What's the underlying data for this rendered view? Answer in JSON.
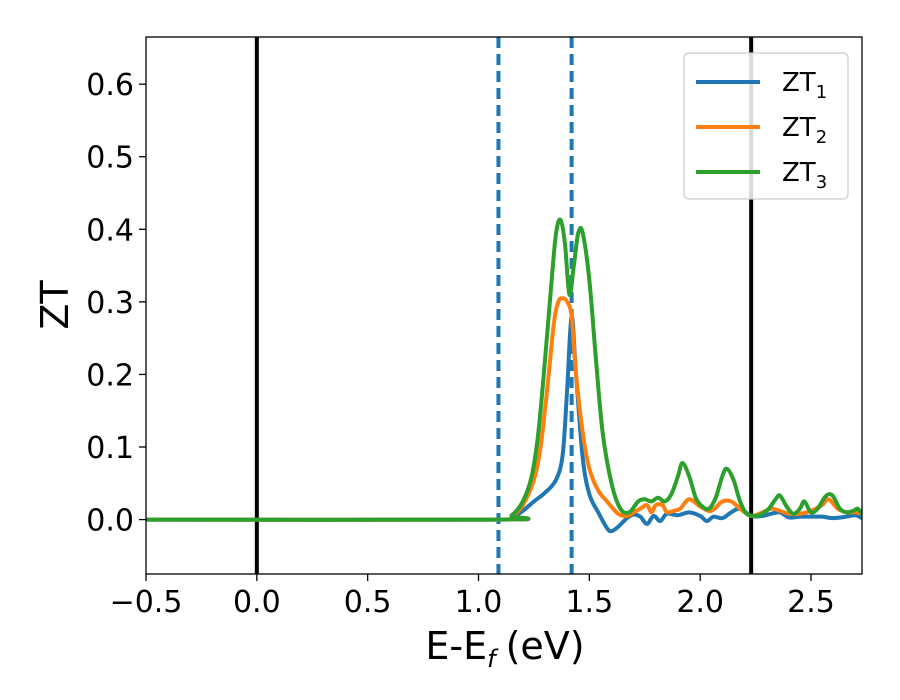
{
  "chart_data": {
    "type": "line",
    "xlabel": "E-E",
    "xlabel_subscript": "f",
    "xlabel_unit": "(eV)",
    "ylabel": "ZT",
    "xlim": [
      -0.5,
      2.73
    ],
    "ylim": [
      -0.075,
      0.665
    ],
    "x_ticks": [
      -0.5,
      0.0,
      0.5,
      1.0,
      1.5,
      2.0,
      2.5
    ],
    "x_tick_labels": [
      "−0.5",
      "0.0",
      "0.5",
      "1.0",
      "1.5",
      "2.0",
      "2.5"
    ],
    "y_ticks": [
      0.0,
      0.1,
      0.2,
      0.3,
      0.4,
      0.5,
      0.6
    ],
    "y_tick_labels": [
      "0.0",
      "0.1",
      "0.2",
      "0.3",
      "0.4",
      "0.5",
      "0.6"
    ],
    "grid": false,
    "legend_position": "top-right",
    "vertical_lines": [
      {
        "x": 0.0,
        "style": "solid",
        "color": "#000000"
      },
      {
        "x": 2.23,
        "style": "solid",
        "color": "#000000"
      },
      {
        "x": 1.09,
        "style": "dashed",
        "color": "#1f77b4"
      },
      {
        "x": 1.42,
        "style": "dashed",
        "color": "#1f77b4"
      }
    ],
    "series": [
      {
        "name": "ZT",
        "subscript": "1",
        "color": "#1f77b4",
        "points": [
          [
            -0.5,
            0
          ],
          [
            1.09,
            0
          ],
          [
            1.15,
            0.003
          ],
          [
            1.2,
            0.012
          ],
          [
            1.25,
            0.025
          ],
          [
            1.3,
            0.037
          ],
          [
            1.35,
            0.055
          ],
          [
            1.38,
            0.09
          ],
          [
            1.4,
            0.18
          ],
          [
            1.42,
            0.28
          ],
          [
            1.44,
            0.2
          ],
          [
            1.47,
            0.085
          ],
          [
            1.5,
            0.035
          ],
          [
            1.54,
            0.01
          ],
          [
            1.58,
            -0.012
          ],
          [
            1.6,
            -0.016
          ],
          [
            1.63,
            -0.01
          ],
          [
            1.67,
            0.002
          ],
          [
            1.7,
            0.007
          ],
          [
            1.73,
            0.004
          ],
          [
            1.76,
            -0.006
          ],
          [
            1.79,
            0.005
          ],
          [
            1.82,
            -0.002
          ],
          [
            1.85,
            0.008
          ],
          [
            1.9,
            0.006
          ],
          [
            1.95,
            0.01
          ],
          [
            2.0,
            0.005
          ],
          [
            2.03,
            -0.002
          ],
          [
            2.06,
            0.004
          ],
          [
            2.1,
            0.002
          ],
          [
            2.14,
            0.01
          ],
          [
            2.18,
            0.015
          ],
          [
            2.23,
            0.005
          ],
          [
            2.28,
            0.005
          ],
          [
            2.32,
            0.008
          ],
          [
            2.36,
            0.01
          ],
          [
            2.4,
            0.003
          ],
          [
            2.45,
            0.004
          ],
          [
            2.5,
            0.004
          ],
          [
            2.55,
            0.004
          ],
          [
            2.6,
            0.002
          ],
          [
            2.66,
            0.004
          ],
          [
            2.7,
            0.006
          ],
          [
            2.73,
            0.002
          ]
        ]
      },
      {
        "name": "ZT",
        "subscript": "2",
        "color": "#ff7f0e",
        "points": [
          [
            -0.5,
            0
          ],
          [
            1.09,
            0
          ],
          [
            1.15,
            0.005
          ],
          [
            1.2,
            0.02
          ],
          [
            1.25,
            0.055
          ],
          [
            1.28,
            0.1
          ],
          [
            1.31,
            0.18
          ],
          [
            1.34,
            0.27
          ],
          [
            1.36,
            0.3
          ],
          [
            1.38,
            0.305
          ],
          [
            1.4,
            0.3
          ],
          [
            1.42,
            0.28
          ],
          [
            1.44,
            0.2
          ],
          [
            1.47,
            0.12
          ],
          [
            1.5,
            0.07
          ],
          [
            1.54,
            0.04
          ],
          [
            1.58,
            0.025
          ],
          [
            1.63,
            0.008
          ],
          [
            1.67,
            0.005
          ],
          [
            1.7,
            0.01
          ],
          [
            1.73,
            0.015
          ],
          [
            1.76,
            0.02
          ],
          [
            1.78,
            0.01
          ],
          [
            1.8,
            0.02
          ],
          [
            1.83,
            0.02
          ],
          [
            1.85,
            0.01
          ],
          [
            1.88,
            0.012
          ],
          [
            1.91,
            0.015
          ],
          [
            1.95,
            0.028
          ],
          [
            2.0,
            0.018
          ],
          [
            2.05,
            0.012
          ],
          [
            2.1,
            0.025
          ],
          [
            2.14,
            0.025
          ],
          [
            2.18,
            0.015
          ],
          [
            2.23,
            0.005
          ],
          [
            2.28,
            0.01
          ],
          [
            2.32,
            0.015
          ],
          [
            2.36,
            0.012
          ],
          [
            2.4,
            0.008
          ],
          [
            2.45,
            0.008
          ],
          [
            2.5,
            0.012
          ],
          [
            2.55,
            0.02
          ],
          [
            2.58,
            0.028
          ],
          [
            2.62,
            0.015
          ],
          [
            2.66,
            0.01
          ],
          [
            2.7,
            0.01
          ],
          [
            2.73,
            0.008
          ]
        ]
      },
      {
        "name": "ZT",
        "subscript": "3",
        "color": "#2ca02c",
        "points": [
          [
            -0.5,
            0
          ],
          [
            1.09,
            0
          ],
          [
            1.15,
            0.006
          ],
          [
            1.2,
            0.025
          ],
          [
            1.24,
            0.06
          ],
          [
            1.27,
            0.12
          ],
          [
            1.3,
            0.22
          ],
          [
            1.33,
            0.33
          ],
          [
            1.35,
            0.395
          ],
          [
            1.37,
            0.413
          ],
          [
            1.39,
            0.38
          ],
          [
            1.41,
            0.31
          ],
          [
            1.43,
            0.35
          ],
          [
            1.45,
            0.395
          ],
          [
            1.47,
            0.395
          ],
          [
            1.5,
            0.33
          ],
          [
            1.53,
            0.22
          ],
          [
            1.56,
            0.12
          ],
          [
            1.6,
            0.05
          ],
          [
            1.64,
            0.015
          ],
          [
            1.68,
            0.01
          ],
          [
            1.72,
            0.025
          ],
          [
            1.75,
            0.028
          ],
          [
            1.78,
            0.025
          ],
          [
            1.81,
            0.03
          ],
          [
            1.84,
            0.025
          ],
          [
            1.87,
            0.035
          ],
          [
            1.9,
            0.06
          ],
          [
            1.92,
            0.078
          ],
          [
            1.95,
            0.06
          ],
          [
            1.98,
            0.03
          ],
          [
            2.01,
            0.018
          ],
          [
            2.04,
            0.015
          ],
          [
            2.07,
            0.03
          ],
          [
            2.1,
            0.06
          ],
          [
            2.12,
            0.07
          ],
          [
            2.15,
            0.055
          ],
          [
            2.18,
            0.025
          ],
          [
            2.21,
            0.008
          ],
          [
            2.25,
            0.005
          ],
          [
            2.28,
            0.008
          ],
          [
            2.31,
            0.015
          ],
          [
            2.34,
            0.028
          ],
          [
            2.36,
            0.033
          ],
          [
            2.39,
            0.018
          ],
          [
            2.42,
            0.008
          ],
          [
            2.45,
            0.015
          ],
          [
            2.47,
            0.025
          ],
          [
            2.5,
            0.01
          ],
          [
            2.53,
            0.015
          ],
          [
            2.56,
            0.03
          ],
          [
            2.58,
            0.035
          ],
          [
            2.6,
            0.032
          ],
          [
            2.63,
            0.015
          ],
          [
            2.66,
            0.01
          ],
          [
            2.69,
            0.012
          ],
          [
            2.71,
            0.015
          ],
          [
            2.73,
            0.008
          ]
        ]
      }
    ]
  }
}
